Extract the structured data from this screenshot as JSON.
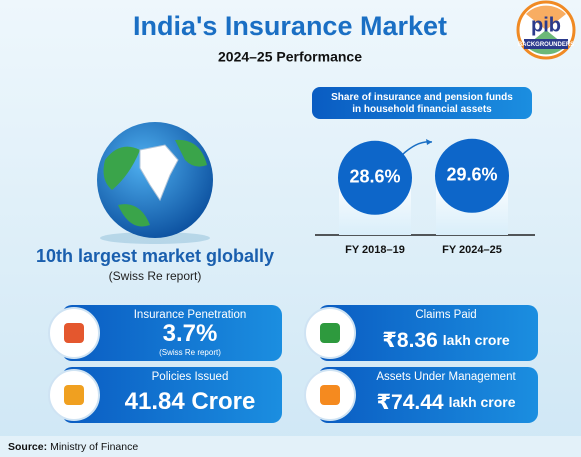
{
  "header": {
    "title": "India's Insurance Market",
    "subtitle": "2024–25 Performance",
    "logo_text": "pib",
    "logo_subtext": "BACKGROUNDERS"
  },
  "ranking": {
    "headline": "10th largest market globally",
    "note": "(Swiss Re report)"
  },
  "chart_data": {
    "type": "bar",
    "title": "Share of insurance and pension funds in household financial assets",
    "categories": [
      "FY 2018–19",
      "FY 2024–25"
    ],
    "values": [
      28.6,
      29.6
    ],
    "value_labels": [
      "28.6%",
      "29.6%"
    ]
  },
  "cards": [
    {
      "label": "Insurance Penetration",
      "value": "3.7%",
      "note": "(Swiss Re report)"
    },
    {
      "label": "Claims Paid",
      "value": "₹8.36",
      "unit": "lakh crore"
    },
    {
      "label": "Policies Issued",
      "value": "41.84 Crore"
    },
    {
      "label": "Assets Under Management",
      "value": "₹74.44",
      "unit": "lakh crore"
    }
  ],
  "footer": {
    "source_label": "Source:",
    "source": "Ministry of Finance"
  }
}
